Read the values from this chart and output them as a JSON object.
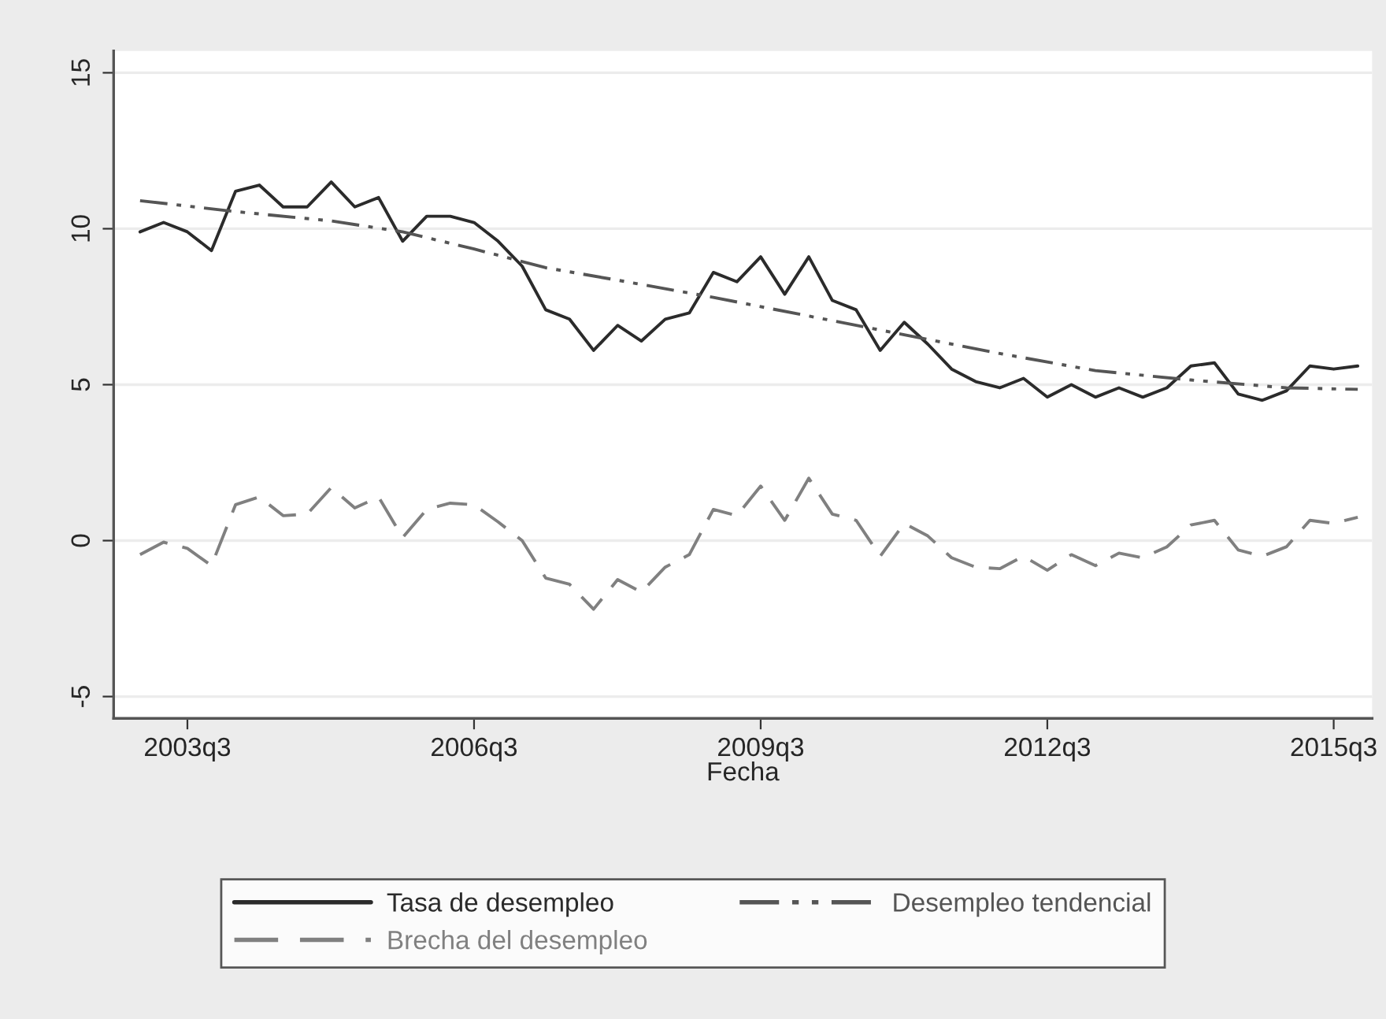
{
  "chart_data": {
    "type": "line",
    "xlabel": "Fecha",
    "xlim": [
      "2002-09-22",
      "2015-11-25"
    ],
    "xticks": [
      {
        "value": "2003-07",
        "label": "2003q3"
      },
      {
        "value": "2006-07",
        "label": "2006q3"
      },
      {
        "value": "2009-07",
        "label": "2009q3"
      },
      {
        "value": "2012-07",
        "label": "2012q3"
      },
      {
        "value": "2015-07",
        "label": "2015q3"
      }
    ],
    "ylim": [
      -5.7,
      15.7
    ],
    "yticks": [
      -5,
      0,
      5,
      10,
      15
    ],
    "grid": "y",
    "legend": "bottom",
    "x": [
      "2003-01",
      "2003-04",
      "2003-07",
      "2003-10",
      "2004-01",
      "2004-04",
      "2004-07",
      "2004-10",
      "2005-01",
      "2005-04",
      "2005-07",
      "2005-10",
      "2006-01",
      "2006-04",
      "2006-07",
      "2006-10",
      "2007-01",
      "2007-04",
      "2007-07",
      "2007-10",
      "2008-01",
      "2008-04",
      "2008-07",
      "2008-10",
      "2009-01",
      "2009-04",
      "2009-07",
      "2009-10",
      "2010-01",
      "2010-04",
      "2010-07",
      "2010-10",
      "2011-01",
      "2011-04",
      "2011-07",
      "2011-10",
      "2012-01",
      "2012-04",
      "2012-07",
      "2012-10",
      "2013-01",
      "2013-04",
      "2013-07",
      "2013-10",
      "2014-01",
      "2014-04",
      "2014-07",
      "2014-10",
      "2015-01",
      "2015-04",
      "2015-07",
      "2015-10"
    ],
    "series": [
      {
        "name": "Tasa de desempleo",
        "color": "#2b2b2b",
        "line_style": "solid",
        "values": [
          9.9,
          10.2,
          9.9,
          9.3,
          11.2,
          11.4,
          10.7,
          10.7,
          11.5,
          10.7,
          11.0,
          9.6,
          10.4,
          10.4,
          10.2,
          9.6,
          8.8,
          7.4,
          7.1,
          6.1,
          6.9,
          6.4,
          7.1,
          7.3,
          8.6,
          8.3,
          9.1,
          7.9,
          9.1,
          7.7,
          7.4,
          6.1,
          7.0,
          6.3,
          5.5,
          5.1,
          4.9,
          5.2,
          4.6,
          5.0,
          4.6,
          4.9,
          4.6,
          4.9,
          5.6,
          5.7,
          4.7,
          4.5,
          4.8,
          5.6,
          5.5,
          5.6
        ]
      },
      {
        "name": "Brecha del desempleo",
        "color": "#808080",
        "line_style": "dashed",
        "values": [
          -0.45,
          -0.05,
          -0.25,
          -0.8,
          1.15,
          1.4,
          0.8,
          0.85,
          1.7,
          1.05,
          1.4,
          0.1,
          1.0,
          1.2,
          1.15,
          0.6,
          0.0,
          -1.2,
          -1.4,
          -2.2,
          -1.25,
          -1.65,
          -0.85,
          -0.45,
          1.0,
          0.8,
          1.75,
          0.65,
          2.0,
          0.85,
          0.65,
          -0.5,
          0.55,
          0.15,
          -0.55,
          -0.85,
          -0.9,
          -0.5,
          -0.95,
          -0.45,
          -0.8,
          -0.4,
          -0.55,
          -0.2,
          0.5,
          0.65,
          -0.3,
          -0.5,
          -0.2,
          0.65,
          0.55,
          0.75
        ]
      },
      {
        "name": "Desempleo tendencial",
        "color": "#555555",
        "line_style": "dashdot",
        "x": [
          "2003-01",
          "2004-01",
          "2005-01",
          "2005-10",
          "2006-07",
          "2007-04",
          "2008-01",
          "2009-01",
          "2010-01",
          "2011-01",
          "2012-01",
          "2013-01",
          "2014-01",
          "2015-01",
          "2015-10"
        ],
        "values": [
          10.9,
          10.55,
          10.25,
          9.9,
          9.35,
          8.75,
          8.35,
          7.8,
          7.2,
          6.6,
          6.0,
          5.45,
          5.15,
          4.9,
          4.85
        ]
      }
    ]
  }
}
